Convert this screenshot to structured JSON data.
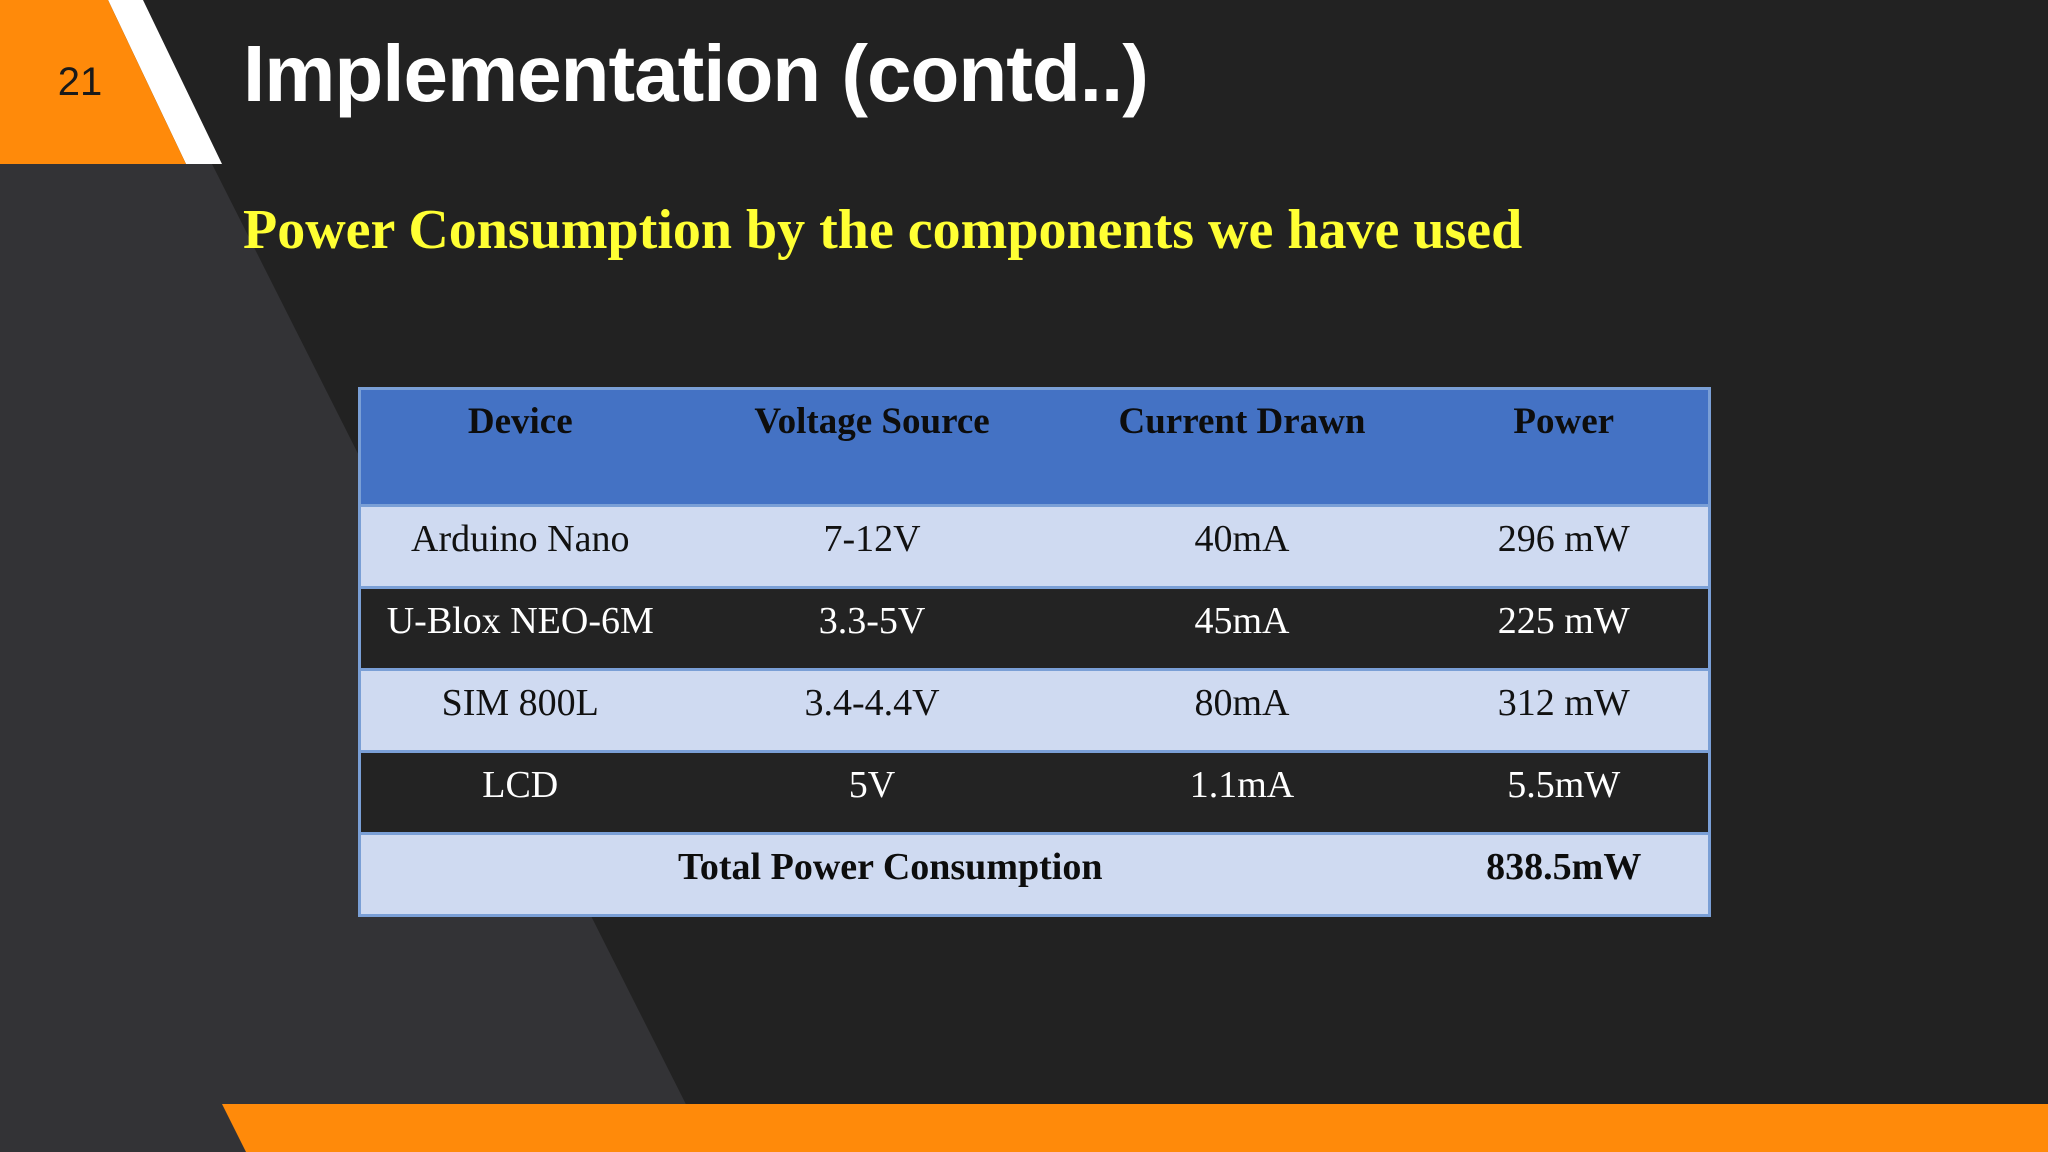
{
  "slide": {
    "number": "21",
    "title": "Implementation (contd..)",
    "subtitle": "Power Consumption by the components we have used"
  },
  "table": {
    "headers": [
      "Device",
      "Voltage Source",
      "Current Drawn",
      "Power"
    ],
    "rows": [
      [
        "Arduino Nano",
        "7-12V",
        "40mA",
        "296 mW"
      ],
      [
        "U-Blox NEO-6M",
        "3.3-5V",
        "45mA",
        "225 mW"
      ],
      [
        "SIM 800L",
        "3.4-4.4V",
        "80mA",
        "312 mW"
      ],
      [
        "LCD",
        "5V",
        "1.1mA",
        "5.5mW"
      ]
    ],
    "total_label": "Total Power Consumption",
    "total_value": "838.5mW"
  },
  "colors": {
    "accent_orange": "#ff8a0a",
    "header_blue": "#4472c4",
    "row_light": "#cfdaf1",
    "row_dark": "#232323",
    "subtitle_yellow": "#ffff33"
  }
}
